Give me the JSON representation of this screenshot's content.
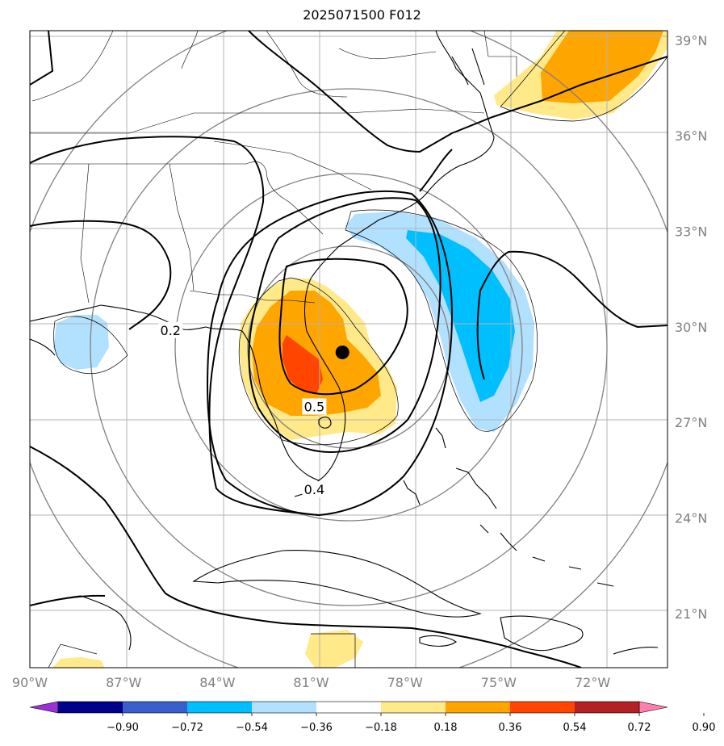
{
  "title": "2025071500 F012",
  "map": {
    "lon_range": [
      -90,
      -69.6
    ],
    "lat_range": [
      19.3,
      39.3
    ],
    "lon_ticks": [
      {
        "value": -90,
        "label": "90°W"
      },
      {
        "value": -87,
        "label": "87°W"
      },
      {
        "value": -84,
        "label": "84°W"
      },
      {
        "value": -81,
        "label": "81°W"
      },
      {
        "value": -78,
        "label": "78°W"
      },
      {
        "value": -75,
        "label": "75°W"
      },
      {
        "value": -72,
        "label": "72°W"
      }
    ],
    "lat_ticks": [
      {
        "value": 39,
        "label": "39°N"
      },
      {
        "value": 36,
        "label": "36°N"
      },
      {
        "value": 33,
        "label": "33°N"
      },
      {
        "value": 30,
        "label": "30°N"
      },
      {
        "value": 27,
        "label": "27°N"
      },
      {
        "value": 24,
        "label": "24°N"
      },
      {
        "value": 21,
        "label": "21°N"
      }
    ],
    "center_marker": {
      "lon": -80.0,
      "lat": 29.2,
      "color": "#000000"
    },
    "contour_labels": [
      {
        "text": "0.2",
        "lon": -85.5,
        "lat": 29.9
      },
      {
        "text": "0.5",
        "lon": -80.9,
        "lat": 27.5
      },
      {
        "text": "0.4",
        "lon": -80.9,
        "lat": 24.9
      }
    ]
  },
  "colorbar": {
    "levels": [
      -0.9,
      -0.72,
      -0.54,
      -0.36,
      -0.18,
      0.18,
      0.36,
      0.54,
      0.72,
      0.9
    ],
    "tick_labels": [
      "−0.90",
      "−0.72",
      "−0.54",
      "−0.36",
      "−0.18",
      "0.18",
      "0.36",
      "0.54",
      "0.72",
      "0.90"
    ],
    "under_color": "#9b30d9",
    "over_color": "#ff80b0",
    "colors": [
      "#00008b",
      "#3a5fcd",
      "#00bfff",
      "#b2e0ff",
      "#ffffff",
      "#ffe989",
      "#ffa500",
      "#ff4500",
      "#b22222"
    ]
  }
}
